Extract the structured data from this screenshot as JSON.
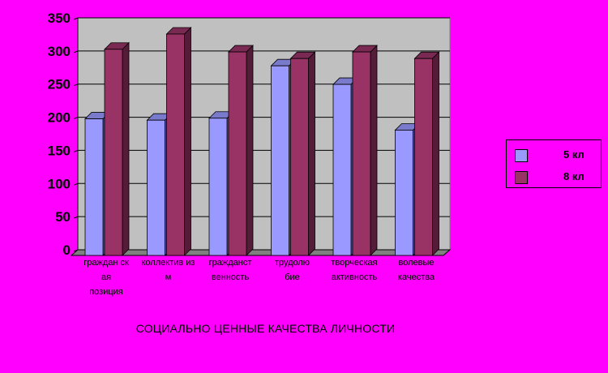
{
  "chart_data": {
    "type": "bar",
    "categories": [
      "гражданская позиция",
      "коллективизм",
      "гражданственность",
      "трудолюбие",
      "творческая активность",
      "волевые качества"
    ],
    "category_lines": [
      [
        "граждан ск",
        "ая",
        "позиция"
      ],
      [
        "коллектив из",
        "м"
      ],
      [
        "гражданст",
        "венность"
      ],
      [
        "трудолю",
        "бие"
      ],
      [
        "творческая",
        "активность"
      ],
      [
        "волевые",
        "качества"
      ]
    ],
    "series": [
      {
        "name": "5 кл",
        "values": [
          200,
          198,
          201,
          280,
          252,
          183
        ],
        "color": "#9999ff"
      },
      {
        "name": "8 кл",
        "values": [
          305,
          328,
          301,
          291,
          301,
          291
        ],
        "color": "#993366"
      }
    ],
    "ylim": [
      0,
      350
    ],
    "yticks": [
      0,
      50,
      100,
      150,
      200,
      250,
      300,
      350
    ],
    "xlabel": "СОЦИАЛЬНО ЦЕННЫЕ КАЧЕСТВА ЛИЧНОСТИ",
    "grid": true,
    "legend_position": "right",
    "colors": {
      "background": "#ff00ff",
      "plot_wall": "#c0c0c0",
      "floor": "#808080"
    }
  }
}
